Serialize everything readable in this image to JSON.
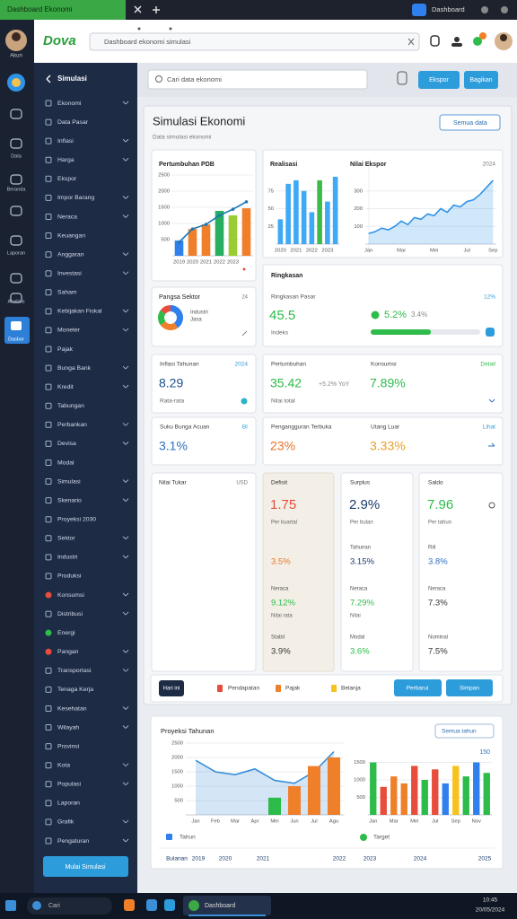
{
  "browser": {
    "tab": "Dashboard Ekonomi",
    "profile": "Dashboard"
  },
  "address": {
    "logo": "Dova",
    "url": "Dashboard ekonomi simulasi"
  },
  "rail": {
    "account": "Akun",
    "items": [
      "Data",
      "Beranda",
      "Laporan",
      "Analisis",
      "Dasbor"
    ]
  },
  "sidebar": {
    "title": "Simulasi",
    "items": [
      "Ekonomi",
      "Data Pasar",
      "Inflasi",
      "Harga",
      "Ekspor",
      "Impor Barang",
      "Neraca",
      "Keuangan",
      "Anggaran",
      "Investasi",
      "Saham",
      "Kebijakan Fiskal",
      "Moneter",
      "Pajak",
      "Bunga Bank",
      "Kredit",
      "Tabungan",
      "Perbankan",
      "Devisa",
      "Modal",
      "Simulasi",
      "Skenario",
      "Proyeksi 2030",
      "Sektor",
      "Industri",
      "Produksi",
      "Konsumsi",
      "Distribusi",
      "Energi",
      "Pangan",
      "Transportasi",
      "Tenaga Kerja",
      "Kesehatan",
      "Wilayah",
      "Provinsi",
      "Kota",
      "Populasi",
      "Laporan",
      "Grafik",
      "Pengaturan"
    ],
    "button": "Mulai Simulasi"
  },
  "toolbar": {
    "search": "Cari data ekonomi",
    "buttons": [
      "Ekspor",
      "Bagikan"
    ]
  },
  "page": {
    "title": "Simulasi Ekonomi",
    "subtitle": "Data simulasi ekonomi",
    "filter": "Semua data"
  },
  "charts": [
    {
      "type": "bar",
      "title": "Pertumbuhan PDB",
      "ylim": [
        0,
        2500
      ],
      "yticks": [
        500,
        1000,
        1500,
        2000,
        2500
      ],
      "categories": [
        "2019",
        "2020",
        "2021",
        "2022",
        "2023",
        null
      ],
      "series": [
        {
          "type": "bar",
          "colors": [
            "#2f80ed",
            "#f07f2a",
            "#f07f2a",
            "#27ae60",
            "#9acd32",
            "#f07f2a"
          ],
          "values": [
            470,
            830,
            970,
            1390,
            1250,
            1470
          ]
        },
        {
          "type": "line",
          "color": "#1f78b4",
          "markers": true,
          "values": [
            420,
            830,
            970,
            1250,
            1440,
            1670
          ]
        }
      ]
    },
    {
      "type": "bar",
      "title": "Realisasi",
      "ylim": [
        0,
        100
      ],
      "yticks": [
        25,
        50,
        75
      ],
      "categories": [
        "2020",
        null,
        "2021",
        null,
        "2022",
        null,
        "2023",
        null
      ],
      "series": [
        {
          "type": "bar",
          "colors": [
            "#3fa9f5",
            "#3fa9f5",
            "#3fa9f5",
            "#3fa9f5",
            "#3fa9f5",
            "#3dbb4a",
            "#3fa9f5",
            "#3fa9f5"
          ],
          "values": [
            35,
            85,
            90,
            75,
            45,
            90,
            60,
            95
          ]
        }
      ]
    },
    {
      "type": "area",
      "title": "Nilai Ekspor",
      "badge": "2024",
      "ylim": [
        0,
        400
      ],
      "yticks": [
        100,
        200,
        300
      ],
      "categories": [
        "Jan",
        null,
        null,
        null,
        null,
        "Mar",
        null,
        null,
        null,
        null,
        "Mei",
        null,
        null,
        null,
        null,
        "Jul",
        null,
        null,
        null,
        "Sep"
      ],
      "series": [
        {
          "type": "area",
          "color": "#2f93e8",
          "values": [
            60,
            70,
            90,
            80,
            100,
            130,
            110,
            150,
            140,
            170,
            160,
            200,
            180,
            220,
            210,
            240,
            250,
            280,
            320,
            360
          ]
        }
      ]
    },
    {
      "type": "area",
      "ylim": [
        0,
        2500
      ],
      "yticks": [
        500,
        1000,
        1500,
        2000,
        2500
      ],
      "categories": [
        "Jan",
        "Feb",
        "Mar",
        "Apr",
        "Mei",
        "Jun",
        "Jul",
        "Agu"
      ],
      "series": [
        {
          "type": "area",
          "color": "#3a8fd8",
          "values": [
            1900,
            1500,
            1400,
            1600,
            1200,
            1100,
            1500,
            2200
          ]
        },
        {
          "type": "bar",
          "colors": [
            null,
            null,
            null,
            null,
            "#2dbb4a",
            "#f07f2a",
            "#f07f2a",
            "#f07f2a"
          ],
          "values": [
            null,
            null,
            null,
            null,
            600,
            1000,
            1700,
            2000
          ]
        }
      ]
    },
    {
      "type": "bar",
      "badge": "150",
      "ylim": [
        0,
        2000
      ],
      "yticks": [
        500,
        1000,
        1500
      ],
      "categories": [
        "Jan",
        null,
        "Mar",
        null,
        "Mei",
        null,
        "Jul",
        null,
        "Sep",
        null,
        "Nov",
        null
      ],
      "series": [
        {
          "type": "bar",
          "colors": [
            "#2dbb4a",
            "#e74c3c",
            "#f07f2a",
            "#f07f2a",
            "#e74c3c",
            "#2dbb4a",
            "#e74c3c",
            "#2f80ed",
            "#f7c21d",
            "#2dbb4a",
            "#2f80ed",
            "#2dbb4a"
          ],
          "values": [
            1500,
            800,
            1100,
            900,
            1400,
            1000,
            1300,
            900,
            1400,
            1100,
            1500,
            1200
          ]
        }
      ]
    }
  ],
  "donut": {
    "title": "Pangsa Sektor",
    "badge": "24",
    "labels": [
      "Industri",
      "Jasa"
    ],
    "values": [
      40,
      25,
      20,
      15
    ],
    "colors": [
      "#2f80ed",
      "#f07f2a",
      "#2dbb4a",
      "#e74c3c"
    ]
  },
  "summary": {
    "title": "Ringkasan",
    "title2": "Ringkasan Pasar",
    "badge": "12%",
    "value": "45.5",
    "value_label": "Indeks",
    "change": "5.2%",
    "change_prev": "3.4%",
    "progress": 55
  },
  "stats": [
    {
      "title": "Inflasi Tahunan",
      "badge": "2024",
      "value": "8.29",
      "note": "Rata-rata"
    },
    {
      "title": "Pertumbuhan",
      "value": "35.42",
      "change": "+5.2% YoY",
      "note": "Nilai total"
    },
    {
      "title": "Konsumsi",
      "badge": "Detail",
      "value": "7.89%"
    },
    {
      "title": "Suku Bunga Acuan",
      "badge": "BI",
      "value": "3.1%"
    },
    {
      "title": "Pengangguran Terbuka",
      "value": "23%"
    },
    {
      "title": "Utang Luar",
      "badge": "Lihat",
      "value": "3.33%"
    }
  ],
  "exchange": {
    "title": "Nilai Tukar",
    "badge": "USD"
  },
  "columns": [
    {
      "header": "Defisit",
      "value": "1.75",
      "note": "Per kuartal",
      "rows": [
        {
          "value": "3.5%"
        },
        {
          "label": "Neraca",
          "value": "9.12%",
          "note": "Nilai rata"
        },
        {
          "label": "Stabil",
          "value": "3.9%"
        }
      ]
    },
    {
      "header": "Surplus",
      "value": "2.9%",
      "note": "Per bulan",
      "rows": [
        {
          "label": "Tahunan",
          "value": "3.15%"
        },
        {
          "label": "Neraca",
          "value": "7.29%",
          "note": "Nilai"
        },
        {
          "label": "Modal",
          "value": "3.6%"
        }
      ]
    },
    {
      "header": "Saldo",
      "value": "7.96",
      "note": "Per tahun",
      "rows": [
        {
          "label": "Riil",
          "value": "3.8%"
        },
        {
          "label": "Neraca",
          "value": "7.3%"
        },
        {
          "label": "Nominal",
          "value": "7.5%"
        }
      ]
    }
  ],
  "footer": {
    "button": "Hari ini",
    "legend": [
      "Pendapatan",
      "Pajak",
      "Belanja"
    ],
    "actions": [
      "Perbarui",
      "Simpan"
    ]
  },
  "projection": {
    "title": "Proyeksi Tahunan",
    "filter": "Semua tahun",
    "legend": [
      "Tahun",
      "Target"
    ],
    "periods": [
      "Bulanan",
      "2019",
      "2020",
      "2021",
      "2022",
      "2023",
      "2024",
      "2025"
    ]
  },
  "taskbar": {
    "search": "Cari",
    "app": "Dashboard",
    "time": "10:45",
    "date": "20/05/2024"
  }
}
